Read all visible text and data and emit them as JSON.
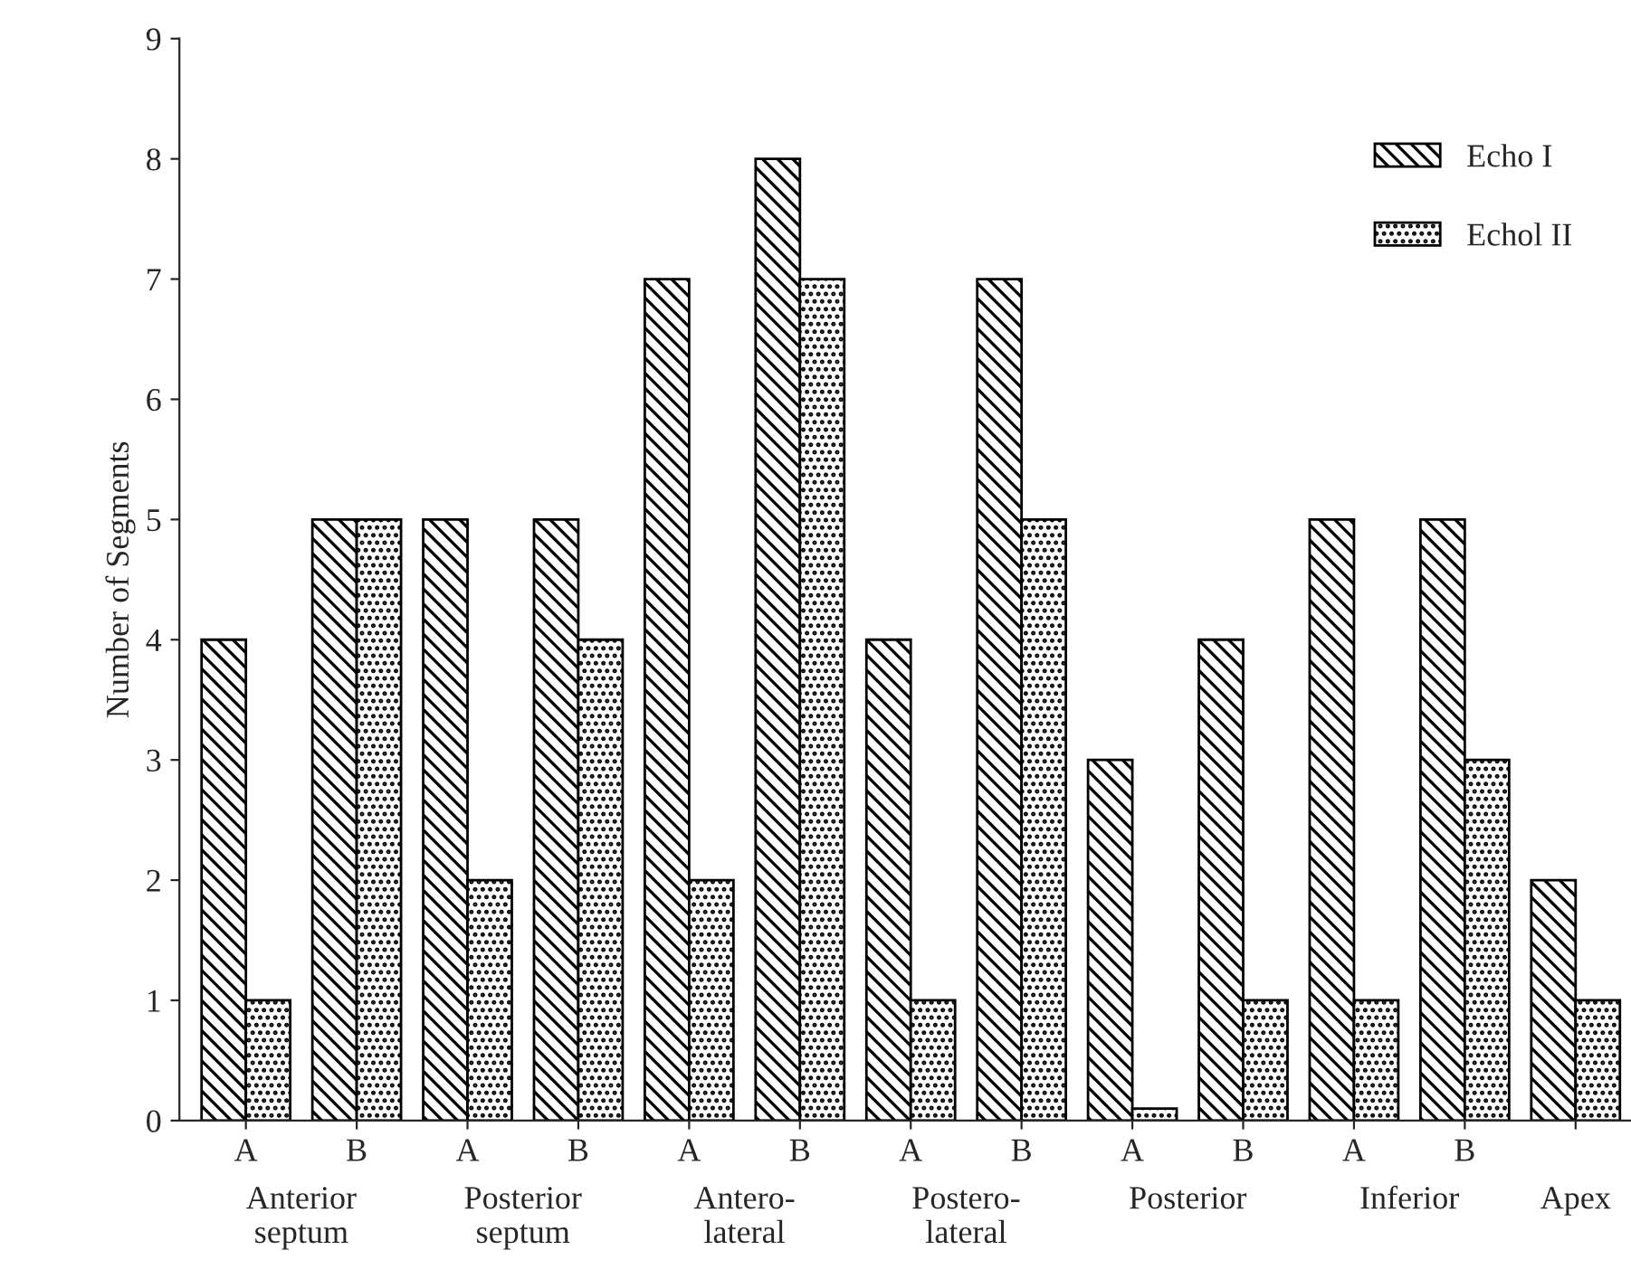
{
  "chart_data": {
    "type": "bar",
    "ylabel": "Number of Segments",
    "categories": [
      "A",
      "B",
      "A",
      "B",
      "A",
      "B",
      "A",
      "B",
      "A",
      "B",
      "A",
      "B",
      null
    ],
    "series": [
      {
        "name": "Echo I",
        "color": "#000000",
        "values": [
          4,
          5,
          5,
          5,
          7,
          8,
          4,
          7,
          3,
          4,
          5,
          5,
          2
        ]
      },
      {
        "name": "Echol II",
        "color": "#000000",
        "values": [
          1,
          5,
          2,
          4,
          2,
          7,
          1,
          5,
          0.1,
          1,
          1,
          3,
          1
        ]
      }
    ],
    "annotations": [
      "Anterior\nseptum",
      "Posterior\nseptum",
      "Antero-\nlateral",
      "Postero-\nlateral",
      "Posterior",
      "Inferior",
      "Apex"
    ],
    "ylim": [
      0,
      9
    ],
    "yticks": [
      0,
      1,
      2,
      3,
      4,
      5,
      6,
      7,
      8,
      9
    ],
    "grid": false,
    "legend": "top right"
  }
}
